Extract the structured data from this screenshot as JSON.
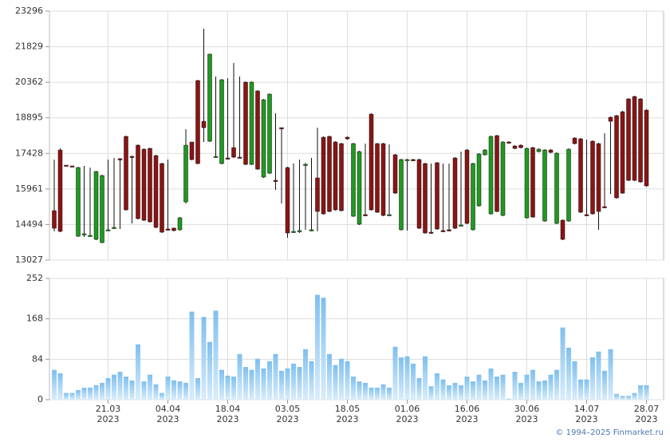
{
  "chart_data": [
    {
      "type": "candlestick",
      "open": [
        15067,
        17569,
        16944,
        16911,
        14014,
        14080,
        14014,
        13883,
        13751,
        14245,
        14343,
        17207,
        18128,
        17306,
        17766,
        17601,
        17634,
        17338,
        17009,
        14310,
        14343,
        14278,
        15429,
        17898,
        20432,
        18753,
        17931,
        17273,
        17009,
        17240,
        17667,
        17273,
        20366,
        16976,
        20004,
        16450,
        16614,
        16318,
        18490,
        16845,
        14179,
        14212,
        16944,
        14245,
        16417,
        18095,
        18128,
        17898,
        17832,
        18095,
        14837,
        14508,
        14903,
        19049,
        17832,
        17832,
        14870,
        17371,
        14278,
        17141,
        17174,
        17174,
        17009,
        14179,
        17042,
        14245,
        14278,
        17240,
        14442,
        17569,
        14278,
        15265,
        17371,
        14935,
        18161,
        14870,
        17898,
        17733,
        17766,
        14771,
        17667,
        17503,
        14639,
        17569,
        14541,
        14672,
        14639,
        18062,
        18029,
        14903,
        17931,
        17832,
        15232,
        18918,
        18984,
        19148,
        19675,
        19774,
        19675,
        19214
      ],
      "high": [
        17174,
        17634,
        16944,
        16911,
        16878,
        16911,
        16845,
        16713,
        16548,
        17174,
        17240,
        17240,
        18161,
        17338,
        17799,
        17634,
        17667,
        17371,
        17042,
        17174,
        14376,
        14804,
        18424,
        17898,
        20465,
        22571,
        21551,
        20596,
        20498,
        20531,
        21156,
        20596,
        20399,
        20399,
        20037,
        19675,
        19905,
        19082,
        18490,
        16878,
        17009,
        17174,
        17042,
        17240,
        18490,
        18128,
        18161,
        17931,
        17865,
        18128,
        17865,
        17536,
        17832,
        19082,
        17865,
        17865,
        17799,
        17404,
        17207,
        17207,
        17207,
        17207,
        17042,
        17009,
        17075,
        17009,
        17009,
        17273,
        17503,
        17601,
        17042,
        17437,
        17601,
        18161,
        18194,
        17931,
        17931,
        17766,
        17799,
        17667,
        17700,
        17634,
        17601,
        17601,
        17470,
        14705,
        17634,
        18095,
        18062,
        17996,
        17964,
        17865,
        18260,
        18951,
        19017,
        19181,
        19708,
        19807,
        19708,
        19247
      ],
      "low": [
        14212,
        14179,
        16911,
        16878,
        13981,
        13981,
        13981,
        13850,
        13718,
        14245,
        14310,
        14310,
        15067,
        14541,
        14705,
        14639,
        14573,
        14343,
        14146,
        14245,
        14212,
        14245,
        15363,
        17141,
        16976,
        17898,
        17898,
        17240,
        16976,
        17174,
        17240,
        17240,
        16944,
        16944,
        16746,
        16417,
        16582,
        15923,
        15363,
        13948,
        14146,
        14146,
        14278,
        14212,
        14212,
        14902,
        15001,
        15067,
        15034,
        17996,
        14804,
        14475,
        14837,
        15067,
        14968,
        14837,
        14837,
        15758,
        14245,
        14245,
        17108,
        14310,
        14113,
        14113,
        14278,
        14179,
        14212,
        14310,
        14409,
        14508,
        14245,
        15232,
        17338,
        14902,
        15001,
        14837,
        17832,
        17601,
        17634,
        14738,
        14771,
        17470,
        14606,
        17437,
        14508,
        13850,
        14606,
        17799,
        14968,
        14837,
        14902,
        14278,
        15166,
        15758,
        15561,
        15758,
        16285,
        16285,
        16219,
        16055
      ],
      "close": [
        14343,
        14212,
        16911,
        16878,
        16845,
        14113,
        14047,
        16680,
        16515,
        14278,
        14376,
        17174,
        15100,
        17273,
        14738,
        14672,
        14606,
        14376,
        14179,
        14278,
        14245,
        14771,
        17766,
        17174,
        17009,
        18490,
        21518,
        17306,
        20465,
        17207,
        17273,
        17240,
        16976,
        20366,
        16779,
        19642,
        19872,
        16285,
        18457,
        14146,
        14212,
        14245,
        16976,
        14278,
        15034,
        14935,
        15034,
        15100,
        15067,
        18029,
        17832,
        17503,
        14870,
        15100,
        15001,
        14870,
        14903,
        15791,
        17174,
        17174,
        17141,
        14343,
        14146,
        14146,
        14310,
        14212,
        14245,
        14343,
        14475,
        14541,
        17009,
        17404,
        17569,
        18128,
        15034,
        17898,
        17865,
        17634,
        17667,
        17634,
        14804,
        17601,
        17569,
        17470,
        17437,
        13883,
        17601,
        17832,
        15001,
        14870,
        14935,
        15034,
        15199,
        18753,
        15594,
        15791,
        16318,
        16318,
        16252,
        16088
      ],
      "up_color": "#1f9a1f",
      "down_color": "#8b1414",
      "ylim": [
        13027,
        23296
      ],
      "yticks": [
        13027,
        14494,
        15961,
        17428,
        18895,
        20362,
        21829,
        23296
      ],
      "grid": true
    },
    {
      "type": "bar",
      "categories": [
        null,
        null,
        null,
        null,
        null,
        null,
        null,
        null,
        null,
        [
          "21.03",
          "2023"
        ],
        null,
        null,
        null,
        null,
        null,
        null,
        null,
        null,
        null,
        [
          "04.04",
          "2023"
        ],
        null,
        null,
        null,
        null,
        null,
        null,
        null,
        null,
        null,
        [
          "18.04",
          "2023"
        ],
        null,
        null,
        null,
        null,
        null,
        null,
        null,
        null,
        null,
        [
          "03.05",
          "2023"
        ],
        null,
        null,
        null,
        null,
        null,
        null,
        null,
        null,
        null,
        [
          "18.05",
          "2023"
        ],
        null,
        null,
        null,
        null,
        null,
        null,
        null,
        null,
        null,
        [
          "01.06",
          "2023"
        ],
        null,
        null,
        null,
        null,
        null,
        null,
        null,
        null,
        null,
        [
          "16.06",
          "2023"
        ],
        null,
        null,
        null,
        null,
        null,
        null,
        null,
        null,
        null,
        [
          "30.06",
          "2023"
        ],
        null,
        null,
        null,
        null,
        null,
        null,
        null,
        null,
        null,
        [
          "14.07",
          "2023"
        ],
        null,
        null,
        null,
        null,
        null,
        null,
        null,
        null,
        null,
        [
          "28.07",
          "2023"
        ]
      ],
      "values": [
        62,
        55,
        14,
        14,
        20,
        25,
        25,
        30,
        35,
        45,
        52,
        58,
        48,
        40,
        115,
        38,
        52,
        32,
        14,
        48,
        40,
        38,
        35,
        183,
        45,
        172,
        120,
        185,
        62,
        50,
        48,
        95,
        68,
        62,
        85,
        65,
        80,
        95,
        60,
        65,
        75,
        68,
        105,
        80,
        218,
        212,
        95,
        72,
        85,
        80,
        48,
        38,
        35,
        25,
        25,
        32,
        25,
        110,
        88,
        90,
        75,
        45,
        90,
        28,
        55,
        42,
        30,
        35,
        30,
        48,
        38,
        52,
        40,
        65,
        48,
        52,
        2,
        58,
        35,
        52,
        62,
        38,
        40,
        52,
        62,
        150,
        108,
        80,
        42,
        42,
        88,
        100,
        60,
        105,
        12,
        8,
        8,
        14,
        30,
        30
      ],
      "color": "#8cc6ef",
      "ylim": [
        0,
        252
      ],
      "yticks": [
        0,
        84,
        168,
        252
      ],
      "grid": true
    }
  ],
  "copyright": "© 1994–2025 Finmarket.ru"
}
